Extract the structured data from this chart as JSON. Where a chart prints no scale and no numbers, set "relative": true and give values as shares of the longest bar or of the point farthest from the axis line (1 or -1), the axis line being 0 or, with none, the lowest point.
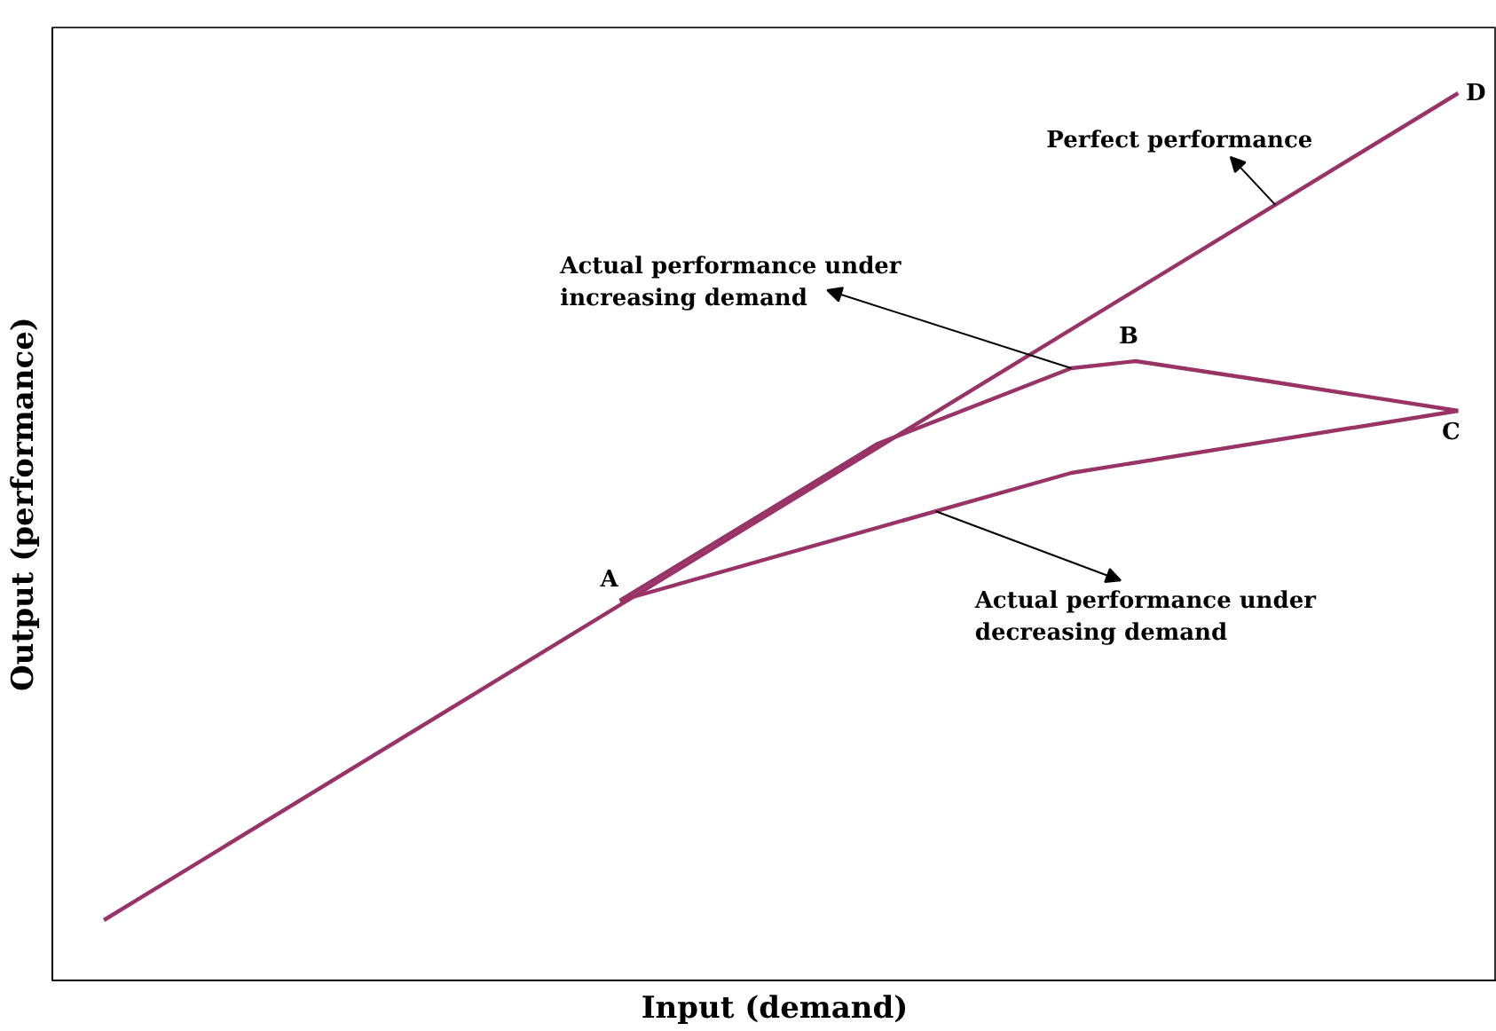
{
  "chart_data": {
    "type": "line",
    "relative": true,
    "xlabel": "Input (demand)",
    "ylabel": "Output (performance)",
    "categories": [
      null,
      null,
      null,
      null,
      null,
      null,
      null,
      null,
      null,
      null,
      null,
      null,
      null,
      null,
      null,
      null,
      null,
      null,
      null,
      null,
      null,
      null
    ],
    "series": [
      {
        "color": "#993366",
        "values": [
          0.068,
          null,
          null,
          null,
          null,
          null,
          null,
          null,
          null,
          null,
          null,
          null,
          null,
          null,
          null,
          null,
          null,
          null,
          null,
          null,
          null,
          1.0
        ]
      },
      {
        "color": "#993366",
        "values": [
          null,
          null,
          null,
          null,
          null,
          null,
          null,
          null,
          0.428,
          null,
          null,
          null,
          0.605,
          null,
          null,
          0.69,
          0.698,
          null,
          0.676,
          null,
          null,
          0.642
        ]
      },
      {
        "color": "#993366",
        "values": [
          null,
          null,
          null,
          null,
          null,
          null,
          null,
          null,
          0.428,
          null,
          null,
          null,
          null,
          null,
          null,
          0.572,
          null,
          null,
          null,
          null,
          null,
          0.642
        ]
      }
    ],
    "annotations": [
      "A",
      "B",
      "C",
      "D",
      "Perfect performance",
      "Actual performance under\nincreasing demand",
      "Actual performance under\ndecreasing demand"
    ],
    "grid": false,
    "marker": "none",
    "line_style": "solid"
  }
}
